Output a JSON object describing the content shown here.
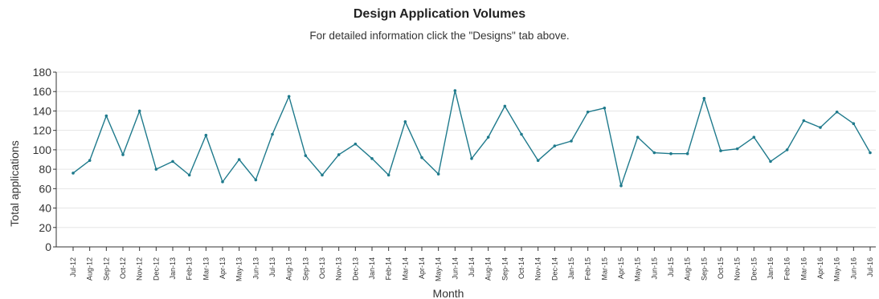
{
  "chart_data": {
    "type": "line",
    "title": "Design Application Volumes",
    "subtitle": "For detailed information click the \"Designs\" tab above.",
    "xlabel": "Month",
    "ylabel": "Total applications",
    "ylim": [
      0,
      180
    ],
    "yticks": [
      0,
      20,
      40,
      60,
      80,
      100,
      120,
      140,
      160,
      180
    ],
    "grid": true,
    "line_color": "#1f7a8c",
    "categories": [
      "Jul-12",
      "Aug-12",
      "Sep-12",
      "Oct-12",
      "Nov-12",
      "Dec-12",
      "Jan-13",
      "Feb-13",
      "Mar-13",
      "Apr-13",
      "May-13",
      "Jun-13",
      "Jul-13",
      "Aug-13",
      "Sep-13",
      "Oct-13",
      "Nov-13",
      "Dec-13",
      "Jan-14",
      "Feb-14",
      "Mar-14",
      "Apr-14",
      "May-14",
      "Jun-14",
      "Jul-14",
      "Aug-14",
      "Sep-14",
      "Oct-14",
      "Nov-14",
      "Dec-14",
      "Jan-15",
      "Feb-15",
      "Mar-15",
      "Apr-15",
      "May-15",
      "Jun-15",
      "Jul-15",
      "Aug-15",
      "Sep-15",
      "Oct-15",
      "Nov-15",
      "Dec-15",
      "Jan-16",
      "Feb-16",
      "Mar-16",
      "Apr-16",
      "May-16",
      "Jun-16",
      "Jul-16"
    ],
    "series": [
      {
        "values": [
          76,
          89,
          135,
          95,
          140,
          80,
          88,
          74,
          115,
          67,
          90,
          69,
          116,
          155,
          94,
          74,
          95,
          106,
          91,
          74,
          129,
          92,
          75,
          161,
          91,
          113,
          145,
          116,
          89,
          104,
          109,
          139,
          143,
          63,
          113,
          97,
          96,
          96,
          153,
          99,
          101,
          113,
          88,
          100,
          130,
          123,
          139,
          127,
          97
        ]
      }
    ]
  }
}
